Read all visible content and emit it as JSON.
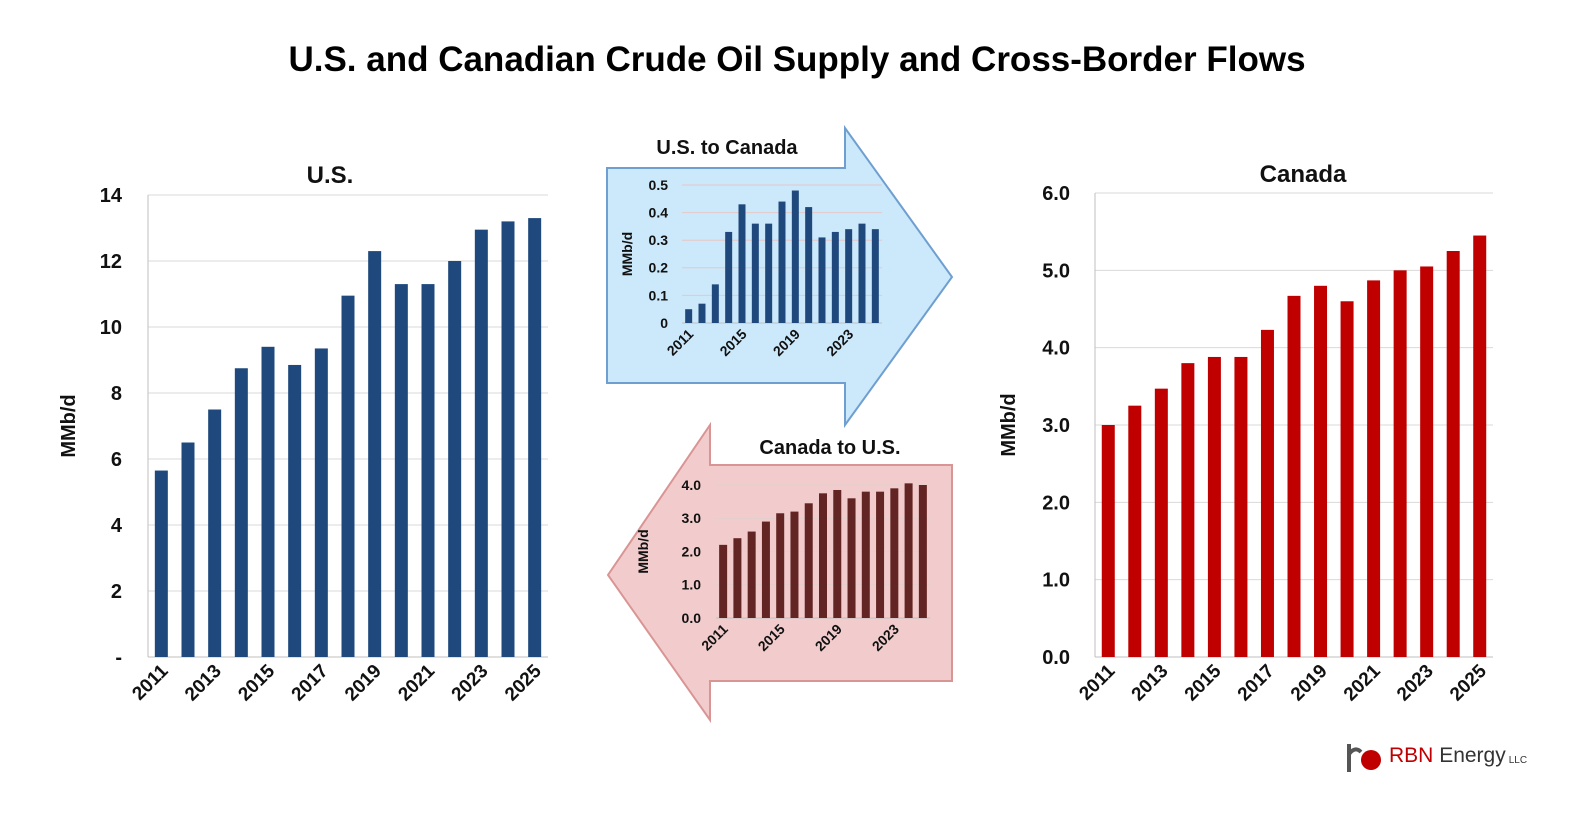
{
  "title": "U.S. and Canadian Crude Oil Supply and Cross-Border Flows",
  "logo": {
    "brand": "RBN",
    "name": "Energy",
    "suffix": "LLC"
  },
  "chart_data": [
    {
      "id": "us",
      "type": "bar",
      "title": "U.S.",
      "ylabel": "MMb/d",
      "ylim": [
        0,
        14
      ],
      "yticks": [
        0,
        2,
        4,
        6,
        8,
        10,
        12,
        14
      ],
      "ytick_labels": [
        "-",
        "2",
        "4",
        "6",
        "8",
        "10",
        "12",
        "14"
      ],
      "categories": [
        "2011",
        "2012",
        "2013",
        "2014",
        "2015",
        "2016",
        "2017",
        "2018",
        "2019",
        "2020",
        "2021",
        "2022",
        "2023",
        "2024",
        "2025"
      ],
      "xtick_labels": [
        "2011",
        "2013",
        "2015",
        "2017",
        "2019",
        "2021",
        "2023",
        "2025"
      ],
      "values": [
        5.65,
        6.5,
        7.5,
        8.75,
        9.4,
        8.85,
        9.35,
        10.95,
        12.3,
        11.3,
        11.3,
        12.0,
        12.95,
        13.2,
        13.3
      ],
      "color": "#1f497d",
      "grid": true
    },
    {
      "id": "us_to_canada",
      "type": "bar",
      "title": "U.S. to Canada",
      "ylabel": "MMb/d",
      "ylim": [
        0,
        0.5
      ],
      "yticks": [
        0,
        0.1,
        0.2,
        0.3,
        0.4,
        0.5
      ],
      "ytick_labels": [
        "0",
        "0.1",
        "0.2",
        "0.3",
        "0.4",
        "0.5"
      ],
      "categories": [
        "2011",
        "2012",
        "2013",
        "2014",
        "2015",
        "2016",
        "2017",
        "2018",
        "2019",
        "2020",
        "2021",
        "2022",
        "2023",
        "2024",
        "2025"
      ],
      "xtick_labels": [
        "2011",
        "2015",
        "2019",
        "2023"
      ],
      "values": [
        0.05,
        0.07,
        0.14,
        0.33,
        0.43,
        0.36,
        0.36,
        0.44,
        0.48,
        0.42,
        0.31,
        0.33,
        0.34,
        0.36,
        0.34
      ],
      "color": "#1f497d",
      "background": "#cce9fb",
      "border": "#6f9fd0",
      "grid": true
    },
    {
      "id": "canada_to_us",
      "type": "bar",
      "title": "Canada to U.S.",
      "ylabel": "MMb/d",
      "ylim": [
        0,
        4
      ],
      "yticks": [
        0,
        1,
        2,
        3,
        4
      ],
      "ytick_labels": [
        "0.0",
        "1.0",
        "2.0",
        "3.0",
        "4.0"
      ],
      "categories": [
        "2011",
        "2012",
        "2013",
        "2014",
        "2015",
        "2016",
        "2017",
        "2018",
        "2019",
        "2020",
        "2021",
        "2022",
        "2023",
        "2024",
        "2025"
      ],
      "xtick_labels": [
        "2011",
        "2015",
        "2019",
        "2023"
      ],
      "values": [
        2.2,
        2.4,
        2.6,
        2.9,
        3.15,
        3.2,
        3.45,
        3.75,
        3.85,
        3.6,
        3.8,
        3.8,
        3.9,
        4.05,
        4.0
      ],
      "color": "#632523",
      "background": "#f2cccc",
      "border": "#d99594",
      "grid": true
    },
    {
      "id": "canada",
      "type": "bar",
      "title": "Canada",
      "ylabel": "MMb/d",
      "ylim": [
        0,
        6
      ],
      "yticks": [
        0,
        1,
        2,
        3,
        4,
        5,
        6
      ],
      "ytick_labels": [
        "0.0",
        "1.0",
        "2.0",
        "3.0",
        "4.0",
        "5.0",
        "6.0"
      ],
      "categories": [
        "2011",
        "2012",
        "2013",
        "2014",
        "2015",
        "2016",
        "2017",
        "2018",
        "2019",
        "2020",
        "2021",
        "2022",
        "2023",
        "2024",
        "2025"
      ],
      "xtick_labels": [
        "2011",
        "2013",
        "2015",
        "2017",
        "2019",
        "2021",
        "2023",
        "2025"
      ],
      "values": [
        3.0,
        3.25,
        3.47,
        3.8,
        3.88,
        3.88,
        4.23,
        4.67,
        4.8,
        4.6,
        4.87,
        5.0,
        5.05,
        5.25,
        5.45
      ],
      "color": "#c00000",
      "grid": true
    }
  ]
}
